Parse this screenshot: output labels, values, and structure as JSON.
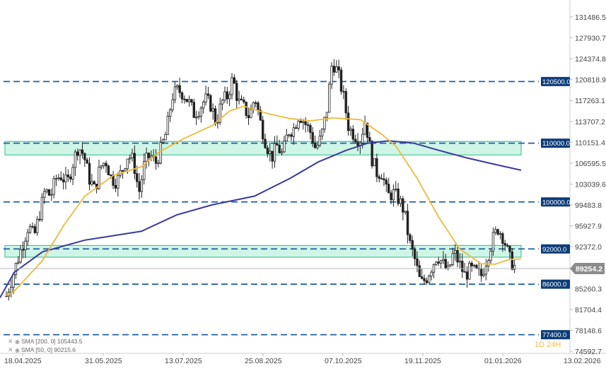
{
  "chart_data": {
    "type": "candlestick",
    "title": "",
    "y_range": [
      74592.7,
      131486.5
    ],
    "y_ticks": [
      "131486.5",
      "127930.7",
      "124374.8",
      "120818.9",
      "117263.1",
      "113707.2",
      "110151.4",
      "106595.5",
      "103039.6",
      "99483.8",
      "95927.9",
      "92372.0",
      "81704.4",
      "78148.6",
      "74592.7"
    ],
    "x_ticks": [
      "18.04.2025",
      "31.05.2025",
      "13.07.2025",
      "25.08.2025",
      "07.10.2025",
      "19.11.2025",
      "01.01.2026",
      "13.02.2026"
    ],
    "current_price": "89254.2",
    "level_labels": {
      "l120500": "120500.0",
      "l110000": "110000.0",
      "l100000": "100000.0",
      "l92000": "92000.0",
      "l86000": "86000.0",
      "l77400": "77400.0",
      "tick85260": "85260.3"
    },
    "levels": [
      120500,
      110000,
      100000,
      92000,
      86000,
      77400
    ],
    "zones": [
      [
        108000,
        110300
      ],
      [
        90600,
        92600
      ]
    ],
    "price_close": [
      84000,
      87000,
      90000,
      93000,
      96000,
      94000,
      98000,
      102000,
      101000,
      104000,
      104500,
      103000,
      106500,
      109500,
      108000,
      104000,
      102000,
      106000,
      107000,
      104000,
      103500,
      105500,
      108000,
      107000,
      101500,
      106500,
      108000,
      106500,
      109000,
      112000,
      118000,
      119000,
      118500,
      117000,
      115000,
      116000,
      117500,
      116500,
      113500,
      117000,
      118000,
      121000,
      117000,
      116000,
      114500,
      118000,
      113500,
      110000,
      107500,
      109500,
      108000,
      112000,
      112500,
      115000,
      113500,
      112000,
      109000,
      111000,
      115500,
      124000,
      122000,
      118000,
      112500,
      111500,
      110500,
      114000,
      108000,
      105000,
      105000,
      101000,
      101500,
      100500,
      98500,
      93000,
      90000,
      86000,
      87000,
      89000,
      91000,
      89500,
      88000,
      91500,
      89500,
      87500,
      88500,
      88000,
      87500,
      90500,
      93500,
      95500,
      94000,
      90500,
      89000
    ],
    "series": [
      {
        "name": "SMA [200, 0] 105443.5",
        "color": "#3a3aa0"
      },
      {
        "name": "SMA [50, 0] 90215.6",
        "color": "#f0b93a"
      }
    ],
    "sma200": [
      [
        0,
        83700
      ],
      [
        20,
        88000
      ],
      [
        60,
        91500
      ],
      [
        120,
        93500
      ],
      [
        200,
        95000
      ],
      [
        250,
        97800
      ],
      [
        300,
        99500
      ],
      [
        360,
        101000
      ],
      [
        410,
        104000
      ],
      [
        450,
        106800
      ],
      [
        490,
        108800
      ],
      [
        520,
        110000
      ],
      [
        550,
        110400
      ],
      [
        585,
        110000
      ],
      [
        620,
        108800
      ],
      [
        660,
        107500
      ],
      [
        700,
        106400
      ],
      [
        737,
        105400
      ]
    ],
    "sma50": [
      [
        8,
        84000
      ],
      [
        20,
        84800
      ],
      [
        60,
        90000
      ],
      [
        90,
        96000
      ],
      [
        120,
        101000
      ],
      [
        160,
        104500
      ],
      [
        200,
        106000
      ],
      [
        225,
        108500
      ],
      [
        260,
        110800
      ],
      [
        300,
        113000
      ],
      [
        325,
        115500
      ],
      [
        345,
        116300
      ],
      [
        380,
        115000
      ],
      [
        410,
        114200
      ],
      [
        440,
        113800
      ],
      [
        470,
        114300
      ],
      [
        510,
        114000
      ],
      [
        540,
        111500
      ],
      [
        560,
        109500
      ],
      [
        590,
        104000
      ],
      [
        620,
        97500
      ],
      [
        650,
        92000
      ],
      [
        680,
        89500
      ],
      [
        700,
        89400
      ],
      [
        720,
        90200
      ],
      [
        737,
        90300
      ]
    ]
  },
  "legend": {
    "sma200": "SMA [200, 0] 105443.5",
    "sma50": "SMA [50, 0] 90215.6"
  },
  "watermark": "1D 24H",
  "colors": {
    "candle": "#222222",
    "level_line": "#2060a0",
    "label_bg": "#0d3d7a",
    "zone_fill": "#bff2dd",
    "zone_border": "#2ebd85",
    "price_tag": "#8c8c8c",
    "sma200": "#3a3aa0",
    "sma50": "#f0b93a"
  }
}
